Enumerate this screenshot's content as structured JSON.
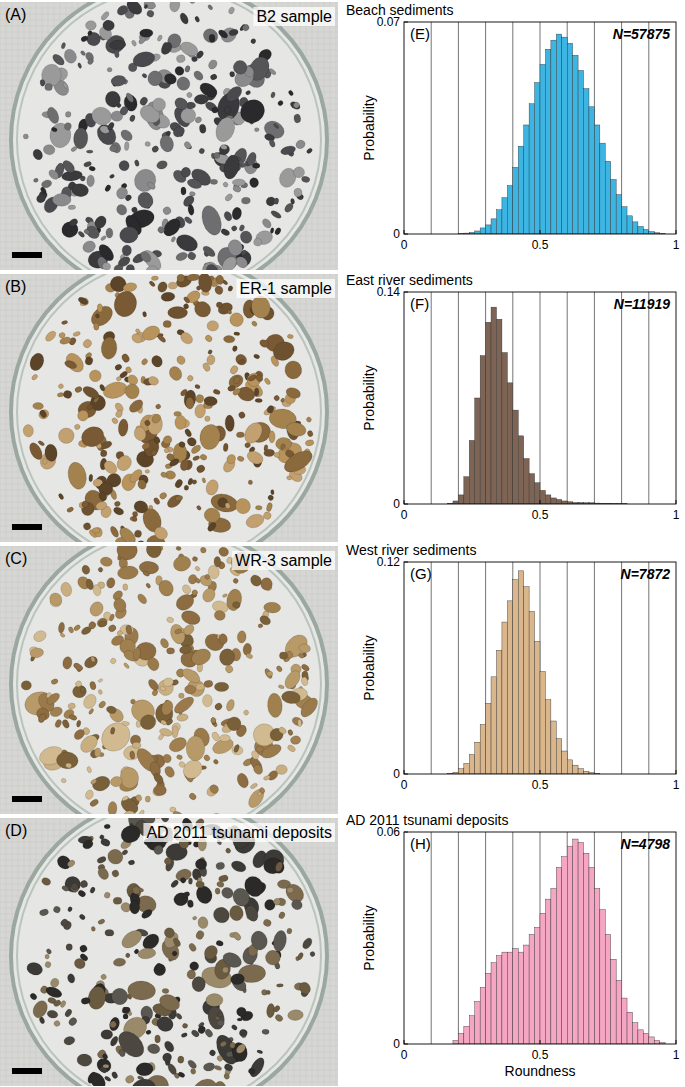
{
  "photos": [
    {
      "panel": "(A)",
      "label": "B2 sample"
    },
    {
      "panel": "(B)",
      "label": "ER-1 sample"
    },
    {
      "panel": "(C)",
      "label": "WR-3 sample"
    },
    {
      "panel": "(D)",
      "label": "AD 2011 tsunami deposits"
    }
  ],
  "chart_data": [
    {
      "type": "histogram",
      "panel": "(E)",
      "title": "Beach sediments",
      "annotation": "N=57875",
      "ylabel": "Probability",
      "color": "#3db5e3",
      "grid": true,
      "xlim": [
        0,
        1
      ],
      "ylim": [
        0,
        0.07
      ],
      "xticks": [
        0,
        0.5,
        1
      ],
      "yticks": [
        0,
        0.07
      ],
      "xgrid": [
        0.1,
        0.2,
        0.3,
        0.4,
        0.5,
        0.6,
        0.7,
        0.8,
        0.9
      ],
      "bins": [
        0,
        0.02,
        0.04,
        0.06,
        0.08,
        0.1,
        0.12,
        0.14,
        0.16,
        0.18,
        0.2,
        0.22,
        0.24,
        0.26,
        0.28,
        0.3,
        0.32,
        0.34,
        0.36,
        0.38,
        0.4,
        0.42,
        0.44,
        0.46,
        0.48,
        0.5,
        0.52,
        0.54,
        0.56,
        0.58,
        0.6,
        0.62,
        0.64,
        0.66,
        0.68,
        0.7,
        0.72,
        0.74,
        0.76,
        0.78,
        0.8,
        0.82,
        0.84,
        0.86,
        0.88,
        0.9,
        0.92,
        0.94,
        0.96,
        0.98,
        1
      ],
      "values": [
        0,
        0,
        0,
        0,
        0,
        0,
        0,
        0,
        0,
        0,
        0.0001,
        0.0003,
        0.0005,
        0.001,
        0.002,
        0.003,
        0.005,
        0.008,
        0.012,
        0.016,
        0.022,
        0.029,
        0.036,
        0.043,
        0.05,
        0.056,
        0.061,
        0.064,
        0.066,
        0.065,
        0.063,
        0.059,
        0.054,
        0.048,
        0.042,
        0.036,
        0.03,
        0.024,
        0.018,
        0.013,
        0.009,
        0.006,
        0.004,
        0.0025,
        0.0015,
        0.0008,
        0.0004,
        0.0002,
        0,
        0
      ]
    },
    {
      "type": "histogram",
      "panel": "(F)",
      "title": "East river sediments",
      "annotation": "N=11919",
      "ylabel": "Probability",
      "color": "#7d6455",
      "grid": true,
      "xlim": [
        0,
        1
      ],
      "ylim": [
        0,
        0.14
      ],
      "xticks": [
        0,
        0.5,
        1
      ],
      "yticks": [
        0,
        0.14
      ],
      "xgrid": [
        0.1,
        0.2,
        0.3,
        0.4,
        0.5,
        0.6,
        0.7,
        0.8,
        0.9
      ],
      "bins": [
        0,
        0.02,
        0.04,
        0.06,
        0.08,
        0.1,
        0.12,
        0.14,
        0.16,
        0.18,
        0.2,
        0.22,
        0.24,
        0.26,
        0.28,
        0.3,
        0.32,
        0.34,
        0.36,
        0.38,
        0.4,
        0.42,
        0.44,
        0.46,
        0.48,
        0.5,
        0.52,
        0.54,
        0.56,
        0.58,
        0.6,
        0.62,
        0.64,
        0.66,
        0.68,
        0.7,
        0.72,
        0.74,
        0.76,
        0.78,
        0.8,
        0.82,
        0.84,
        0.86,
        0.88,
        0.9,
        0.92,
        0.94,
        0.96,
        0.98,
        1
      ],
      "values": [
        0,
        0,
        0,
        0,
        0,
        0,
        0,
        0,
        0.0005,
        0.002,
        0.006,
        0.018,
        0.042,
        0.07,
        0.098,
        0.12,
        0.13,
        0.122,
        0.1,
        0.08,
        0.062,
        0.045,
        0.03,
        0.02,
        0.014,
        0.009,
        0.006,
        0.004,
        0.003,
        0.002,
        0.0015,
        0.001,
        0.001,
        0.0008,
        0.0008,
        0.0006,
        0.0005,
        0.0005,
        0.0004,
        0.0003,
        0.0003,
        0,
        0,
        0,
        0,
        0,
        0,
        0,
        0,
        0
      ]
    },
    {
      "type": "histogram",
      "panel": "(G)",
      "title": "West river sediments",
      "annotation": "N=7872",
      "ylabel": "Probability",
      "color": "#d9b68c",
      "grid": true,
      "xlim": [
        0,
        1
      ],
      "ylim": [
        0,
        0.12
      ],
      "xticks": [
        0,
        0.5,
        1
      ],
      "yticks": [
        0,
        0.12
      ],
      "xgrid": [
        0.1,
        0.2,
        0.3,
        0.4,
        0.5,
        0.6,
        0.7,
        0.8,
        0.9
      ],
      "bins": [
        0,
        0.02,
        0.04,
        0.06,
        0.08,
        0.1,
        0.12,
        0.14,
        0.16,
        0.18,
        0.2,
        0.22,
        0.24,
        0.26,
        0.28,
        0.3,
        0.32,
        0.34,
        0.36,
        0.38,
        0.4,
        0.42,
        0.44,
        0.46,
        0.48,
        0.5,
        0.52,
        0.54,
        0.56,
        0.58,
        0.6,
        0.62,
        0.64,
        0.66,
        0.68,
        0.7,
        0.72,
        0.74,
        0.76,
        0.78,
        0.8,
        0.82,
        0.84,
        0.86,
        0.88,
        0.9,
        0.92,
        0.94,
        0.96,
        0.98,
        1
      ],
      "values": [
        0,
        0,
        0,
        0,
        0,
        0,
        0,
        0,
        0.0003,
        0.001,
        0.003,
        0.006,
        0.011,
        0.018,
        0.028,
        0.04,
        0.055,
        0.07,
        0.086,
        0.098,
        0.11,
        0.115,
        0.106,
        0.092,
        0.075,
        0.058,
        0.042,
        0.03,
        0.02,
        0.013,
        0.008,
        0.005,
        0.003,
        0.0015,
        0.0008,
        0.0004,
        0,
        0,
        0,
        0,
        0,
        0,
        0,
        0,
        0,
        0,
        0,
        0,
        0,
        0
      ]
    },
    {
      "type": "histogram",
      "panel": "(H)",
      "title": "AD 2011 tsunami deposits",
      "annotation": "N=4798",
      "ylabel": "Probability",
      "xlabel": "Roundness",
      "color": "#f5a6c3",
      "grid": true,
      "xlim": [
        0,
        1
      ],
      "ylim": [
        0,
        0.06
      ],
      "xticks": [
        0,
        0.5,
        1
      ],
      "yticks": [
        0,
        0.06
      ],
      "xgrid": [
        0.1,
        0.2,
        0.3,
        0.4,
        0.5,
        0.6,
        0.7,
        0.8,
        0.9
      ],
      "bins": [
        0,
        0.02,
        0.04,
        0.06,
        0.08,
        0.1,
        0.12,
        0.14,
        0.16,
        0.18,
        0.2,
        0.22,
        0.24,
        0.26,
        0.28,
        0.3,
        0.32,
        0.34,
        0.36,
        0.38,
        0.4,
        0.42,
        0.44,
        0.46,
        0.48,
        0.5,
        0.52,
        0.54,
        0.56,
        0.58,
        0.6,
        0.62,
        0.64,
        0.66,
        0.68,
        0.7,
        0.72,
        0.74,
        0.76,
        0.78,
        0.8,
        0.82,
        0.84,
        0.86,
        0.88,
        0.9,
        0.92,
        0.94,
        0.96,
        0.98,
        1
      ],
      "values": [
        0,
        0,
        0,
        0,
        0,
        0,
        0,
        0,
        0,
        0.001,
        0.003,
        0.005,
        0.008,
        0.012,
        0.016,
        0.02,
        0.023,
        0.025,
        0.026,
        0.026,
        0.027,
        0.026,
        0.028,
        0.031,
        0.033,
        0.037,
        0.041,
        0.044,
        0.05,
        0.053,
        0.056,
        0.058,
        0.057,
        0.054,
        0.05,
        0.044,
        0.038,
        0.031,
        0.024,
        0.018,
        0.013,
        0.009,
        0.006,
        0.004,
        0.003,
        0.002,
        0.001,
        0.0004,
        0,
        0
      ]
    }
  ]
}
